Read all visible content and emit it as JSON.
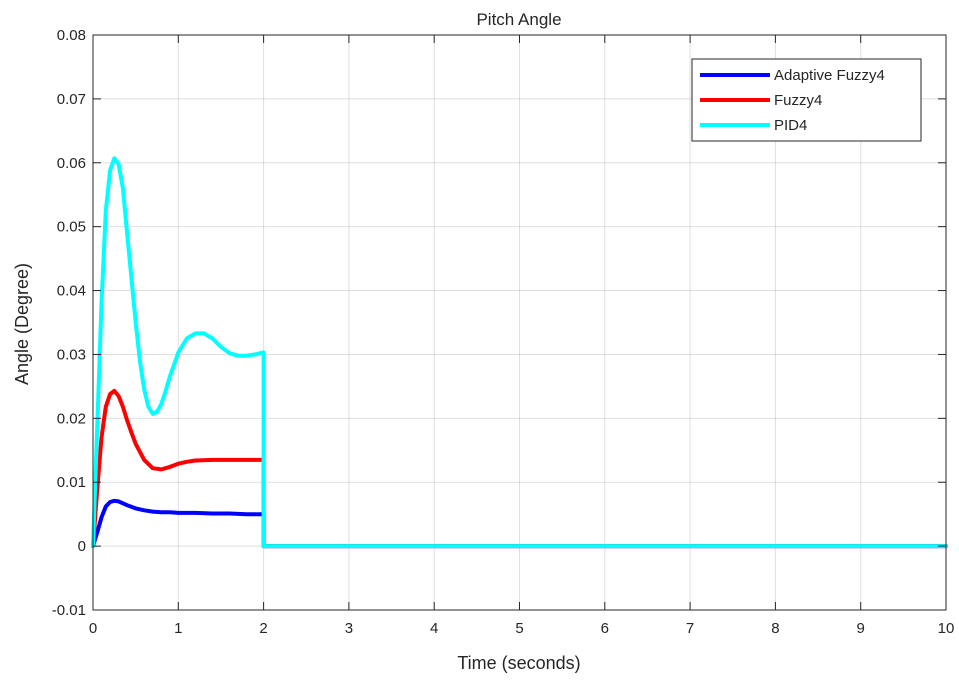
{
  "chart_data": {
    "type": "line",
    "title": "Pitch Angle",
    "xlabel": "Time (seconds)",
    "ylabel": "Angle (Degree)",
    "xlim": [
      0,
      10
    ],
    "ylim": [
      -0.01,
      0.08
    ],
    "xticks": [
      0,
      1,
      2,
      3,
      4,
      5,
      6,
      7,
      8,
      9,
      10
    ],
    "xtick_labels": [
      "0",
      "1",
      "2",
      "3",
      "4",
      "5",
      "6",
      "7",
      "8",
      "9",
      "10"
    ],
    "yticks": [
      -0.01,
      0,
      0.01,
      0.02,
      0.03,
      0.04,
      0.05,
      0.06,
      0.07,
      0.08
    ],
    "ytick_labels": [
      "-0.01",
      "0",
      "0.01",
      "0.02",
      "0.03",
      "0.04",
      "0.05",
      "0.06",
      "0.07",
      "0.08"
    ],
    "grid": true,
    "legend_position": "top-right",
    "series": [
      {
        "name": "Adaptive Fuzzy4",
        "color": "#0000ff",
        "x": [
          0,
          0.05,
          0.1,
          0.15,
          0.2,
          0.25,
          0.3,
          0.35,
          0.4,
          0.5,
          0.6,
          0.7,
          0.8,
          0.9,
          1.0,
          1.2,
          1.4,
          1.6,
          1.8,
          2.0,
          2.0,
          10
        ],
        "y": [
          0,
          0.0022,
          0.0045,
          0.0062,
          0.0069,
          0.0071,
          0.007,
          0.0067,
          0.0064,
          0.0059,
          0.0056,
          0.0054,
          0.0053,
          0.0053,
          0.0052,
          0.0052,
          0.0051,
          0.0051,
          0.005,
          0.005,
          0,
          0
        ]
      },
      {
        "name": "Fuzzy4",
        "color": "#ff0000",
        "x": [
          0,
          0.05,
          0.1,
          0.15,
          0.2,
          0.25,
          0.3,
          0.35,
          0.4,
          0.45,
          0.5,
          0.6,
          0.7,
          0.8,
          0.9,
          1.0,
          1.1,
          1.2,
          1.4,
          1.6,
          1.8,
          2.0,
          2.0,
          10
        ],
        "y": [
          0,
          0.009,
          0.017,
          0.0218,
          0.0238,
          0.0243,
          0.0235,
          0.0218,
          0.0197,
          0.0178,
          0.016,
          0.0135,
          0.0122,
          0.012,
          0.0124,
          0.0129,
          0.0132,
          0.0134,
          0.0135,
          0.0135,
          0.0135,
          0.0135,
          0,
          0
        ]
      },
      {
        "name": "PID4",
        "color": "#00ffff",
        "x": [
          0,
          0.05,
          0.1,
          0.15,
          0.2,
          0.25,
          0.3,
          0.35,
          0.4,
          0.45,
          0.5,
          0.55,
          0.6,
          0.65,
          0.7,
          0.75,
          0.8,
          0.85,
          0.9,
          1.0,
          1.1,
          1.2,
          1.3,
          1.4,
          1.5,
          1.6,
          1.7,
          1.8,
          1.9,
          2.0,
          2.0,
          10
        ],
        "y": [
          0,
          0.019,
          0.038,
          0.0525,
          0.0588,
          0.0607,
          0.0598,
          0.056,
          0.049,
          0.042,
          0.035,
          0.029,
          0.0245,
          0.0218,
          0.0207,
          0.021,
          0.0222,
          0.0242,
          0.0265,
          0.0303,
          0.0325,
          0.0333,
          0.0333,
          0.0325,
          0.0312,
          0.0302,
          0.0298,
          0.0298,
          0.03,
          0.0303,
          0,
          0
        ]
      }
    ]
  }
}
